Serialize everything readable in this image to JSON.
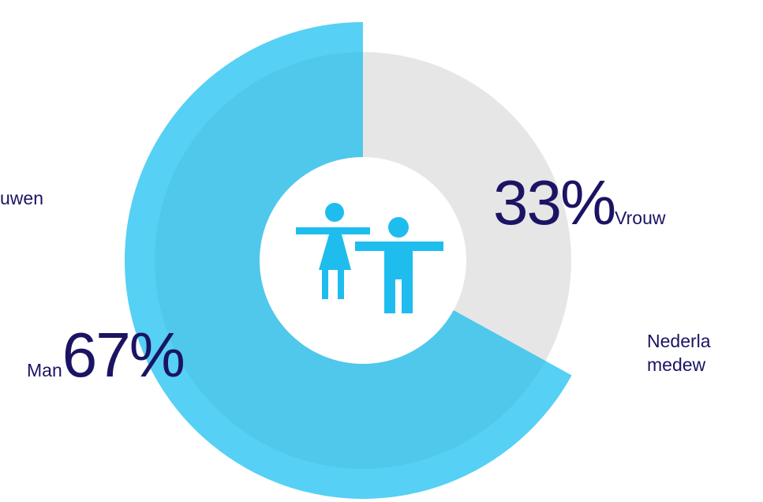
{
  "chart_data": {
    "type": "pie",
    "categories": [
      "Vrouw",
      "Man"
    ],
    "values": [
      33,
      67
    ],
    "unit": "%",
    "colors": {
      "Vrouw": "#e6e6e6",
      "Man": "#4fc8ec",
      "Man_outer": "#56d0f4",
      "center_icon": "#1fbdee"
    },
    "labels": {
      "Vrouw": {
        "value": "33%",
        "name": "Vrouw"
      },
      "Man": {
        "value": "67%",
        "name": "Man"
      }
    },
    "center_icon": "children-icon"
  },
  "side_text": {
    "left": "uwen",
    "right_line1": "Nederla",
    "right_line2": "medew"
  },
  "text_color": "#1b1464"
}
